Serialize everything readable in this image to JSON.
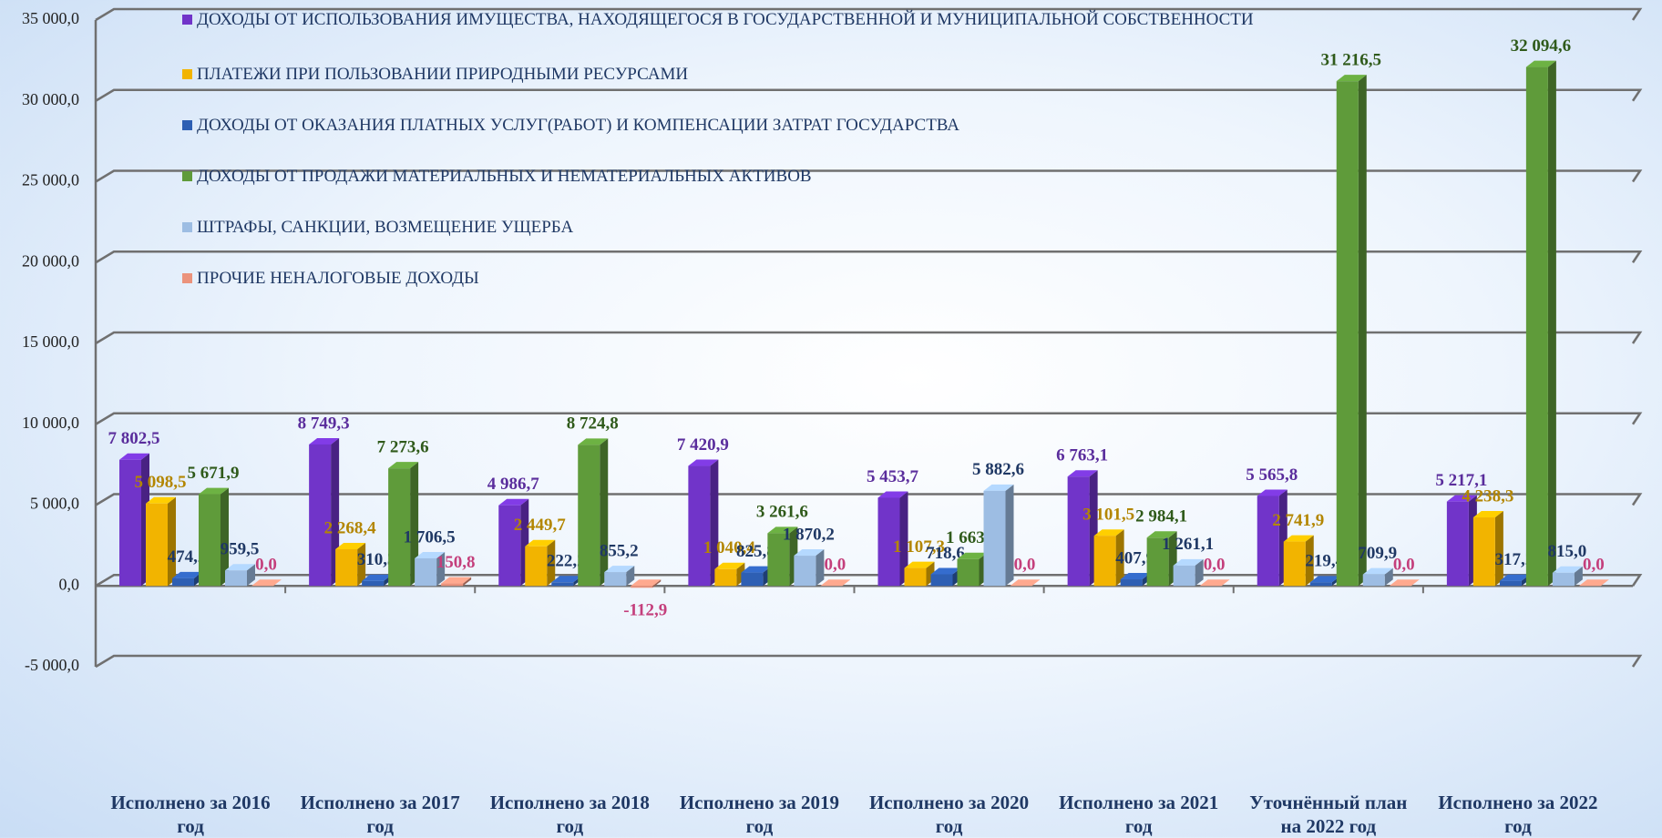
{
  "chart_data": {
    "type": "bar3d",
    "categories": [
      "Исполнено за 2016 год",
      "Исполнено за 2017 год",
      "Исполнено за 2018 год",
      "Исполнено за 2019 год",
      "Исполнено за 2020 год",
      "Исполнено за 2021 год",
      "Уточнённый план на 2022 год",
      "Исполнено за 2022 год"
    ],
    "series": [
      {
        "name": "ДОХОДЫ ОТ ИСПОЛЬЗОВАНИЯ ИМУЩЕСТВА, НАХОДЯЩЕГОСЯ В ГОСУДАРСТВЕННОЙ И МУНИЦИПАЛЬНОЙ СОБСТВЕННОСТИ",
        "color": "#7134c9",
        "label_color": "#5a2d9c",
        "values": [
          7802.5,
          8749.3,
          4986.7,
          7420.9,
          5453.7,
          6763.1,
          5565.8,
          5217.1
        ],
        "value_labels": [
          "7 802,5",
          "8 749,3",
          "4 986,7",
          "7 420,9",
          "5 453,7",
          "6 763,1",
          "5 565,8",
          "5 217,1"
        ]
      },
      {
        "name": "ПЛАТЕЖИ ПРИ ПОЛЬЗОВАНИИ ПРИРОДНЫМИ РЕСУРСАМИ",
        "color": "#f2b400",
        "label_color": "#b38600",
        "values": [
          5098.5,
          2268.4,
          2449.7,
          1040.4,
          1107.3,
          3101.5,
          2741.9,
          4238.3
        ],
        "value_labels": [
          "5 098,5",
          "2 268,4",
          "2 449,7",
          "1 040,4",
          "1 107,3",
          "3 101,5",
          "2 741,9",
          "4 238,3"
        ]
      },
      {
        "name": "ДОХОДЫ ОТ ОКАЗАНИЯ ПЛАТНЫХ УСЛУГ(РАБОТ) И КОМПЕНСАЦИИ ЗАТРАТ ГОСУДАРСТВА",
        "color": "#2e5fb3",
        "label_color": "#1f3864",
        "values": [
          474.2,
          310.3,
          222.2,
          825.8,
          718.6,
          407.9,
          219.4,
          317.2
        ],
        "value_labels": [
          "474,2",
          "310,3",
          "222,2",
          "825,8",
          "718,6",
          "407,9",
          "219,4",
          "317,2"
        ]
      },
      {
        "name": "ДОХОДЫ ОТ ПРОДАЖИ МАТЕРИАЛЬНЫХ И НЕМАТЕРИАЛЬНЫХ АКТИВОВ",
        "color": "#5f9b3a",
        "label_color": "#2f5a1a",
        "values": [
          5671.9,
          7273.6,
          8724.8,
          3261.6,
          1663.3,
          2984.1,
          31216.5,
          32094.6
        ],
        "value_labels": [
          "5 671,9",
          "7 273,6",
          "8 724,8",
          "3 261,6",
          "1 663,3",
          "2 984,1",
          "31 216,5",
          "32 094,6"
        ]
      },
      {
        "name": "ШТРАФЫ, САНКЦИИ, ВОЗМЕЩЕНИЕ УЩЕРБА",
        "color": "#9dbde3",
        "label_color": "#1f3864",
        "values": [
          959.5,
          1706.5,
          855.2,
          1870.2,
          5882.6,
          1261.1,
          709.9,
          815.0
        ],
        "value_labels": [
          "959,5",
          "1 706,5",
          "855,2",
          "1 870,2",
          "5 882,6",
          "1 261,1",
          "709,9",
          "815,0"
        ]
      },
      {
        "name": "ПРОЧИЕ НЕНАЛОГОВЫЕ ДОХОДЫ",
        "color": "#eb937c",
        "label_color": "#c43f7c",
        "values": [
          0.0,
          150.8,
          -112.9,
          0.0,
          0.0,
          0.0,
          0.0,
          0.0
        ],
        "value_labels": [
          "0,0",
          "150,8",
          "-112,9",
          "0,0",
          "0,0",
          "0,0",
          "0,0",
          "0,0"
        ]
      }
    ],
    "ylim": [
      -5000,
      35000
    ],
    "yticks": [
      {
        "value": -5000,
        "label": "-5 000,0"
      },
      {
        "value": 0,
        "label": "0,0"
      },
      {
        "value": 5000,
        "label": "5 000,0"
      },
      {
        "value": 10000,
        "label": "10 000,0"
      },
      {
        "value": 15000,
        "label": "15 000,0"
      },
      {
        "value": 20000,
        "label": "20 000,0"
      },
      {
        "value": 25000,
        "label": "25 000,0"
      },
      {
        "value": 30000,
        "label": "30 000,0"
      },
      {
        "value": 35000,
        "label": "35 000,0"
      }
    ],
    "grid": true,
    "legend": "top-left"
  }
}
